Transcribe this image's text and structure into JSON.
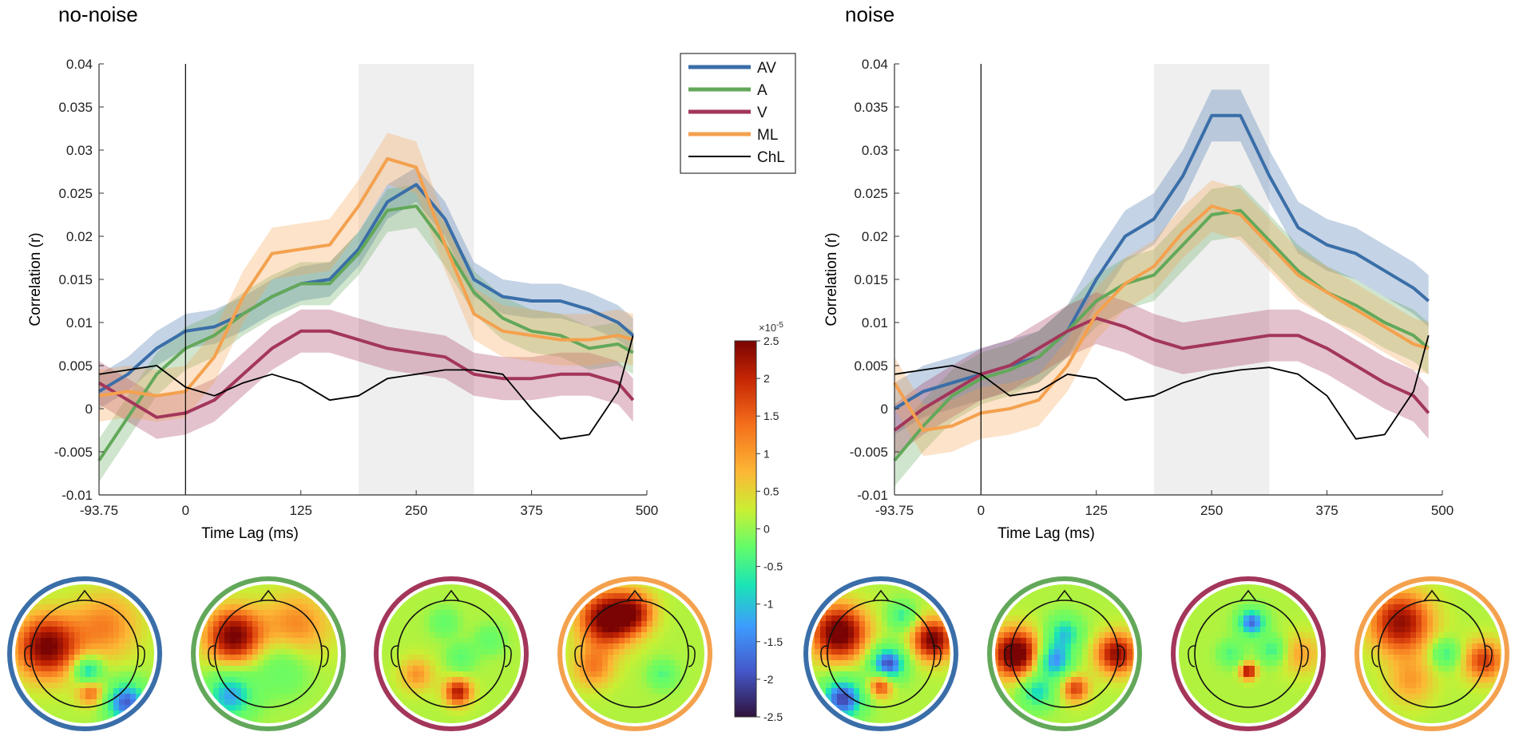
{
  "colors": {
    "AV": "#3a6ea8",
    "A": "#63a85a",
    "V": "#a3365a",
    "ML": "#f4a14e",
    "ChL": "#000000",
    "window": "#efefef"
  },
  "legend": {
    "entries": [
      {
        "key": "AV",
        "label": "AV"
      },
      {
        "key": "A",
        "label": "A"
      },
      {
        "key": "V",
        "label": "V"
      },
      {
        "key": "ML",
        "label": "ML"
      },
      {
        "key": "ChL",
        "label": "ChL"
      }
    ]
  },
  "colorbar": {
    "multiplier": "×10",
    "exponent": "-5",
    "ticks": [
      "2.5",
      "2",
      "1.5",
      "1",
      "0.5",
      "0",
      "-0.5",
      "-1",
      "-1.5",
      "-2",
      "-2.5"
    ],
    "values": [
      2.5,
      2,
      1.5,
      1,
      0.5,
      0,
      -0.5,
      -1,
      -1.5,
      -2,
      -2.5
    ]
  },
  "chart_data": [
    {
      "type": "line",
      "title": "no-noise",
      "xlabel": "Time Lag (ms)",
      "ylabel": "Correlation (r)",
      "xlim": [
        -93.75,
        500
      ],
      "ylim": [
        -0.01,
        0.04
      ],
      "xticks": [
        -93.75,
        0,
        125,
        250,
        375,
        500
      ],
      "xtick_labels": [
        "-93.75",
        "0",
        "125",
        "250",
        "375",
        "500"
      ],
      "yticks": [
        -0.01,
        -0.005,
        0,
        0.005,
        0.01,
        0.015,
        0.02,
        0.025,
        0.03,
        0.035,
        0.04
      ],
      "ytick_labels": [
        "-0.01",
        "-0.005",
        "0",
        "0.005",
        "0.01",
        "0.015",
        "0.02",
        "0.025",
        "0.03",
        "0.035",
        "0.04"
      ],
      "window_ms": [
        187.5,
        312.5
      ],
      "x": [
        -93.75,
        -62.5,
        -31.25,
        0,
        31.25,
        62.5,
        93.75,
        125,
        156.25,
        187.5,
        218.75,
        250,
        281.25,
        312.5,
        343.75,
        375,
        406.25,
        437.5,
        468.75,
        500
      ],
      "series": [
        {
          "name": "AV",
          "values": [
            0.002,
            0.004,
            0.007,
            0.009,
            0.0095,
            0.011,
            0.013,
            0.0145,
            0.015,
            0.0185,
            0.024,
            0.026,
            0.022,
            0.015,
            0.013,
            0.0125,
            0.0125,
            0.0115,
            0.01,
            0.0085
          ],
          "band": 0.002
        },
        {
          "name": "A",
          "values": [
            -0.006,
            -0.001,
            0.004,
            0.007,
            0.0085,
            0.011,
            0.013,
            0.0145,
            0.0145,
            0.018,
            0.023,
            0.0235,
            0.019,
            0.0135,
            0.0105,
            0.009,
            0.0085,
            0.007,
            0.0075,
            0.0065
          ],
          "band": 0.0025
        },
        {
          "name": "V",
          "values": [
            0.003,
            0.001,
            -0.001,
            -0.0005,
            0.001,
            0.004,
            0.007,
            0.009,
            0.009,
            0.008,
            0.007,
            0.0065,
            0.006,
            0.004,
            0.0035,
            0.0035,
            0.004,
            0.004,
            0.003,
            0.001
          ],
          "band": 0.0025
        },
        {
          "name": "ML",
          "values": [
            0.0015,
            0.002,
            0.0015,
            0.002,
            0.006,
            0.013,
            0.018,
            0.0185,
            0.019,
            0.0235,
            0.029,
            0.028,
            0.019,
            0.011,
            0.009,
            0.0085,
            0.008,
            0.008,
            0.0085,
            0.008
          ],
          "band": 0.003
        },
        {
          "name": "ChL",
          "values": [
            0.004,
            0.0045,
            0.005,
            0.0025,
            0.0015,
            0.003,
            0.004,
            0.003,
            0.001,
            0.0015,
            0.0035,
            0.004,
            0.0045,
            0.0045,
            0.004,
            0.0,
            -0.0035,
            -0.003,
            0.002,
            0.0085
          ],
          "band": 0
        }
      ]
    },
    {
      "type": "line",
      "title": "noise",
      "xlabel": "Time Lag (ms)",
      "ylabel": "Correlation (r)",
      "xlim": [
        -93.75,
        500
      ],
      "ylim": [
        -0.01,
        0.04
      ],
      "xticks": [
        -93.75,
        0,
        125,
        250,
        375,
        500
      ],
      "xtick_labels": [
        "-93.75",
        "0",
        "125",
        "250",
        "375",
        "500"
      ],
      "yticks": [
        -0.01,
        -0.005,
        0,
        0.005,
        0.01,
        0.015,
        0.02,
        0.025,
        0.03,
        0.035,
        0.04
      ],
      "ytick_labels": [
        "-0.01",
        "-0.005",
        "0",
        "0.005",
        "0.01",
        "0.015",
        "0.02",
        "0.025",
        "0.03",
        "0.035",
        "0.04"
      ],
      "window_ms": [
        187.5,
        312.5
      ],
      "x": [
        -93.75,
        -62.5,
        -31.25,
        0,
        31.25,
        62.5,
        93.75,
        125,
        156.25,
        187.5,
        218.75,
        250,
        281.25,
        312.5,
        343.75,
        375,
        406.25,
        437.5,
        468.75,
        500
      ],
      "series": [
        {
          "name": "AV",
          "values": [
            0.0,
            0.002,
            0.003,
            0.004,
            0.005,
            0.006,
            0.009,
            0.015,
            0.02,
            0.022,
            0.027,
            0.034,
            0.034,
            0.027,
            0.021,
            0.019,
            0.018,
            0.016,
            0.014,
            0.0125
          ],
          "band": 0.003
        },
        {
          "name": "A",
          "values": [
            -0.006,
            -0.002,
            0.0015,
            0.0035,
            0.0045,
            0.006,
            0.009,
            0.0125,
            0.0145,
            0.0155,
            0.019,
            0.0225,
            0.023,
            0.0195,
            0.016,
            0.0135,
            0.012,
            0.01,
            0.0085,
            0.007
          ],
          "band": 0.003
        },
        {
          "name": "V",
          "values": [
            -0.0025,
            0.0,
            0.002,
            0.004,
            0.005,
            0.007,
            0.009,
            0.0105,
            0.0095,
            0.008,
            0.007,
            0.0075,
            0.008,
            0.0085,
            0.0085,
            0.007,
            0.005,
            0.003,
            0.0015,
            -0.0005
          ],
          "band": 0.003
        },
        {
          "name": "ML",
          "values": [
            0.003,
            -0.0025,
            -0.002,
            -0.0005,
            0.0,
            0.001,
            0.005,
            0.011,
            0.0145,
            0.0165,
            0.0205,
            0.0235,
            0.0225,
            0.019,
            0.0155,
            0.0135,
            0.0115,
            0.0095,
            0.0075,
            0.007
          ],
          "band": 0.003
        },
        {
          "name": "ChL",
          "values": [
            0.004,
            0.0045,
            0.005,
            0.004,
            0.0015,
            0.002,
            0.004,
            0.0035,
            0.001,
            0.0015,
            0.003,
            0.004,
            0.0045,
            0.0048,
            0.004,
            0.0015,
            -0.0035,
            -0.003,
            0.002,
            0.0085
          ],
          "band": 0
        }
      ]
    }
  ],
  "topoplots": [
    {
      "condition": "AV",
      "panel": "no-noise",
      "blobs": [
        [
          -0.55,
          -0.1,
          0.45,
          2.2
        ],
        [
          0.05,
          0.25,
          0.2,
          -1.8
        ],
        [
          0.6,
          0.7,
          0.3,
          -2.3
        ],
        [
          0.1,
          0.55,
          0.2,
          1.3
        ],
        [
          0.3,
          -0.4,
          0.5,
          1.0
        ]
      ]
    },
    {
      "condition": "A",
      "panel": "no-noise",
      "blobs": [
        [
          -0.5,
          -0.25,
          0.4,
          2.2
        ],
        [
          0.2,
          0.2,
          0.4,
          -0.8
        ],
        [
          -0.55,
          0.6,
          0.35,
          -1.8
        ],
        [
          0.4,
          -0.4,
          0.5,
          1.0
        ]
      ]
    },
    {
      "condition": "V",
      "panel": "no-noise",
      "blobs": [
        [
          -0.1,
          -0.45,
          0.2,
          -0.8
        ],
        [
          0.15,
          0.05,
          0.2,
          -0.9
        ],
        [
          0.1,
          0.55,
          0.2,
          1.8
        ],
        [
          -0.5,
          0.3,
          0.25,
          0.9
        ],
        [
          0.55,
          -0.2,
          0.2,
          -0.8
        ]
      ]
    },
    {
      "condition": "ML",
      "panel": "no-noise",
      "blobs": [
        [
          -0.4,
          -0.5,
          0.4,
          2.3
        ],
        [
          0.0,
          -0.6,
          0.3,
          1.4
        ],
        [
          0.4,
          0.3,
          0.2,
          -1.0
        ],
        [
          -0.6,
          0.2,
          0.3,
          1.0
        ]
      ]
    },
    {
      "condition": "AV",
      "panel": "noise",
      "blobs": [
        [
          -0.6,
          -0.3,
          0.4,
          2.4
        ],
        [
          0.1,
          0.15,
          0.25,
          -2.5
        ],
        [
          -0.55,
          0.65,
          0.3,
          -2.5
        ],
        [
          0.0,
          0.45,
          0.18,
          1.8
        ],
        [
          0.75,
          -0.2,
          0.3,
          2.2
        ],
        [
          0.3,
          -0.55,
          0.2,
          -1.2
        ]
      ]
    },
    {
      "condition": "A",
      "panel": "noise",
      "blobs": [
        [
          -0.7,
          0.0,
          0.35,
          2.5
        ],
        [
          0.75,
          0.0,
          0.3,
          2.0
        ],
        [
          -0.15,
          0.1,
          0.25,
          -2.0
        ],
        [
          0.15,
          0.5,
          0.2,
          1.5
        ],
        [
          -0.4,
          0.55,
          0.25,
          -1.5
        ],
        [
          0.0,
          -0.3,
          0.25,
          -1.5
        ]
      ]
    },
    {
      "condition": "V",
      "panel": "noise",
      "blobs": [
        [
          0.05,
          -0.45,
          0.2,
          -2.2
        ],
        [
          0.0,
          0.25,
          0.12,
          2.0
        ],
        [
          -0.25,
          0.0,
          0.18,
          -1.0
        ],
        [
          0.35,
          -0.05,
          0.2,
          -1.2
        ],
        [
          0.75,
          0.0,
          0.3,
          0.8
        ]
      ]
    },
    {
      "condition": "ML",
      "panel": "noise",
      "blobs": [
        [
          -0.45,
          -0.45,
          0.45,
          2.0
        ],
        [
          0.2,
          0.0,
          0.2,
          -1.2
        ],
        [
          0.75,
          0.1,
          0.3,
          1.5
        ],
        [
          -0.3,
          0.4,
          0.35,
          0.8
        ]
      ]
    }
  ]
}
